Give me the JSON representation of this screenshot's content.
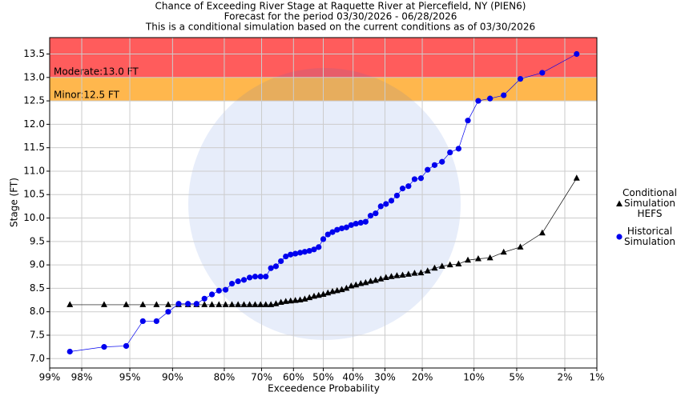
{
  "chart_data": {
    "type": "exceedance",
    "title": "Chance of Exceeding River Stage at Raquette River at Piercefield, NY (PIEN6)",
    "subtitle": "Forecast for the period 03/30/2026 - 06/28/2026",
    "note": "This is a conditional simulation based on the current conditions as of 03/30/2026",
    "x_label": "Exceedence Probability",
    "y_label": "Stage (FT)",
    "xlim": [
      99,
      1
    ],
    "xticks": [
      {
        "value": 99,
        "label": "99%"
      },
      {
        "value": 98,
        "label": "98%"
      },
      {
        "value": 95,
        "label": "95%"
      },
      {
        "value": 90,
        "label": "90%"
      },
      {
        "value": 80,
        "label": "80%"
      },
      {
        "value": 70,
        "label": "70%"
      },
      {
        "value": 60,
        "label": "60%"
      },
      {
        "value": 50,
        "label": "50%"
      },
      {
        "value": 40,
        "label": "40%"
      },
      {
        "value": 30,
        "label": "30%"
      },
      {
        "value": 20,
        "label": "20%"
      },
      {
        "value": 10,
        "label": "10%"
      },
      {
        "value": 5,
        "label": "5%"
      },
      {
        "value": 2,
        "label": "2%"
      },
      {
        "value": 1,
        "label": "1%"
      }
    ],
    "ylim": [
      6.8,
      13.85
    ],
    "yticks": [
      {
        "value": 7,
        "label": "7.0"
      },
      {
        "value": 7.5,
        "label": "7.5"
      },
      {
        "value": 8,
        "label": "8.0"
      },
      {
        "value": 8.5,
        "label": "8.5"
      },
      {
        "value": 9,
        "label": "9.0"
      },
      {
        "value": 9.5,
        "label": "9.5"
      },
      {
        "value": 10,
        "label": "10.0"
      },
      {
        "value": 10.5,
        "label": "10.5"
      },
      {
        "value": 11,
        "label": "11.0"
      },
      {
        "value": 11.5,
        "label": "11.5"
      },
      {
        "value": 12,
        "label": "12.0"
      },
      {
        "value": 12.5,
        "label": "12.5"
      },
      {
        "value": 13,
        "label": "13.0"
      },
      {
        "value": 13.5,
        "label": "13.5"
      }
    ],
    "grid": true,
    "x_scale": "probability",
    "thresholds": [
      {
        "label": "Moderate:13.0 FT",
        "value": 13.0,
        "color": "#ff5c5c"
      },
      {
        "label": "Minor:12.5 FT",
        "value": 12.5,
        "color": "#ffb74d"
      }
    ],
    "x": [
      98.44,
      96.88,
      95.31,
      93.75,
      92.19,
      90.63,
      89.06,
      87.5,
      85.94,
      84.38,
      82.81,
      81.25,
      79.69,
      78.13,
      76.56,
      75,
      73.44,
      71.88,
      70.31,
      68.75,
      67.19,
      65.63,
      64.06,
      62.5,
      60.94,
      59.38,
      57.81,
      56.25,
      54.69,
      53.13,
      51.56,
      50,
      48.44,
      46.88,
      45.31,
      43.75,
      42.19,
      40.63,
      39.06,
      37.5,
      35.94,
      34.38,
      32.81,
      31.25,
      29.69,
      28.13,
      26.56,
      25,
      23.44,
      21.88,
      20.31,
      18.75,
      17.19,
      15.63,
      14.06,
      12.5,
      10.94,
      9.38,
      7.81,
      6.25,
      4.69,
      3.13,
      1.56
    ],
    "series": [
      {
        "name": "Conditional Simulation HEFS",
        "color": "#000000",
        "marker": "triangle",
        "values": [
          8.15,
          8.15,
          8.15,
          8.15,
          8.15,
          8.15,
          8.15,
          8.15,
          8.15,
          8.15,
          8.15,
          8.15,
          8.15,
          8.15,
          8.15,
          8.15,
          8.15,
          8.15,
          8.15,
          8.15,
          8.15,
          8.17,
          8.2,
          8.22,
          8.23,
          8.24,
          8.25,
          8.27,
          8.3,
          8.33,
          8.35,
          8.37,
          8.4,
          8.43,
          8.45,
          8.47,
          8.5,
          8.55,
          8.57,
          8.6,
          8.62,
          8.65,
          8.67,
          8.7,
          8.73,
          8.75,
          8.77,
          8.78,
          8.8,
          8.82,
          8.83,
          8.87,
          8.93,
          8.97,
          9.0,
          9.02,
          9.1,
          9.13,
          9.15,
          9.27,
          9.38,
          9.68,
          10.85
        ]
      },
      {
        "name": "Historical Simulation",
        "color": "#0000ee",
        "marker": "circle",
        "values": [
          7.15,
          7.25,
          7.27,
          7.8,
          7.8,
          8.0,
          8.17,
          8.17,
          8.17,
          8.28,
          8.37,
          8.45,
          8.47,
          8.6,
          8.65,
          8.68,
          8.73,
          8.75,
          8.75,
          8.75,
          8.93,
          8.97,
          9.08,
          9.18,
          9.22,
          9.24,
          9.26,
          9.28,
          9.3,
          9.33,
          9.38,
          9.55,
          9.65,
          9.7,
          9.75,
          9.78,
          9.8,
          9.85,
          9.88,
          9.9,
          9.92,
          10.05,
          10.1,
          10.25,
          10.3,
          10.37,
          10.48,
          10.63,
          10.68,
          10.83,
          10.85,
          11.03,
          11.13,
          11.2,
          11.4,
          11.48,
          12.08,
          12.5,
          12.55,
          12.62,
          12.97,
          13.1,
          13.5
        ]
      }
    ]
  }
}
